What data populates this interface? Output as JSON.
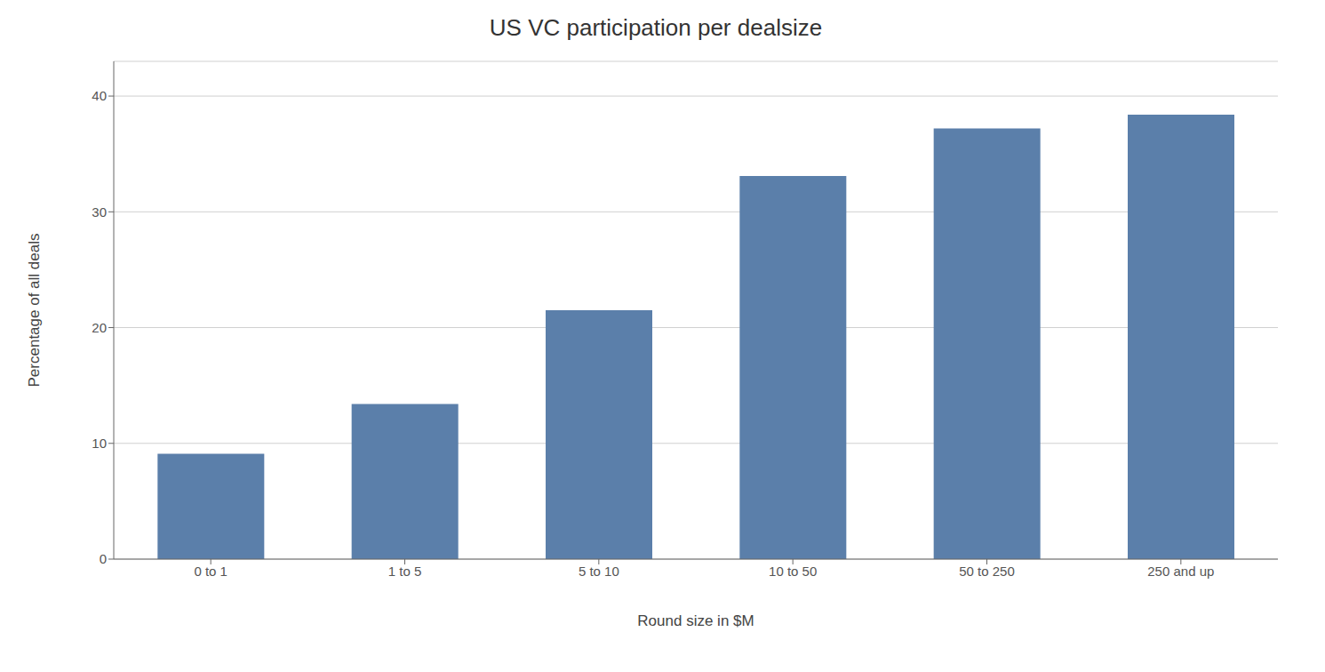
{
  "chart_data": {
    "type": "bar",
    "title": "US VC participation per dealsize",
    "categories": [
      "0 to 1",
      "1 to 5",
      "5 to 10",
      "10 to 50",
      "50 to 250",
      "250 and up"
    ],
    "values": [
      9.1,
      13.4,
      21.5,
      33.1,
      37.2,
      38.4
    ],
    "color": "#5b7faa",
    "xlabel": "Round size in $M",
    "ylabel": "Percentage of all deals",
    "ylim": [
      0,
      43
    ],
    "yticks": [
      0,
      10,
      20,
      30,
      40
    ],
    "grid": true
  }
}
